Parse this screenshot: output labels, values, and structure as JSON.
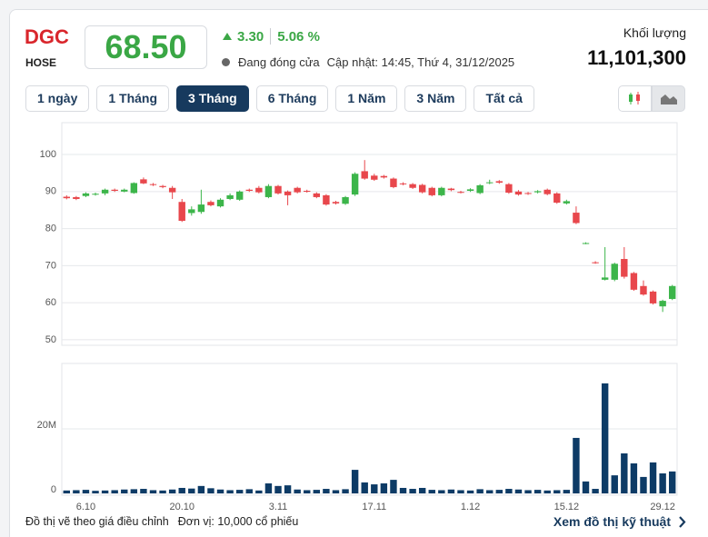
{
  "header": {
    "symbol": "DGC",
    "exchange": "HOSE",
    "price": "68.50",
    "change": "3.30",
    "change_percent": "5.06 %",
    "status": "Đang đóng cửa",
    "updated": "Cập nhật: 14:45, Thứ 4, 31/12/2025",
    "volume_label": "Khối lượng",
    "volume": "11,101,300"
  },
  "tabs": [
    "1 ngày",
    "1 Tháng",
    "3 Tháng",
    "6 Tháng",
    "1 Năm",
    "3 Năm",
    "Tất cả"
  ],
  "active_tab": 2,
  "chart_data": {
    "type": "candlestick",
    "up_color": "#3cb54a",
    "down_color": "#e8474c",
    "categories": [
      null,
      null,
      "6.10",
      null,
      null,
      null,
      null,
      null,
      null,
      null,
      null,
      null,
      "20.10",
      null,
      null,
      null,
      null,
      null,
      null,
      null,
      null,
      null,
      "3.11",
      null,
      null,
      null,
      null,
      null,
      null,
      null,
      null,
      null,
      "17.11",
      null,
      null,
      null,
      null,
      null,
      null,
      null,
      null,
      null,
      "1.12",
      null,
      null,
      null,
      null,
      null,
      null,
      null,
      null,
      null,
      "15.12",
      null,
      null,
      null,
      null,
      null,
      null,
      null,
      null,
      null,
      "29.12",
      null
    ],
    "open": [
      88.6,
      88.5,
      88.8,
      89.2,
      89.5,
      90.5,
      90,
      89.6,
      93.3,
      92,
      91.5,
      91,
      87.2,
      84.2,
      84.5,
      87.2,
      86,
      88,
      87.8,
      90.5,
      91,
      88.5,
      91.5,
      90,
      91,
      90.2,
      89.5,
      89,
      87.2,
      86.7,
      89.2,
      95.5,
      94.3,
      94.2,
      93.5,
      92.2,
      92,
      91.8,
      91,
      89,
      90.8,
      89.9,
      90.2,
      89.6,
      92.3,
      92.8,
      92,
      90,
      89.6,
      89.8,
      90.5,
      89.5,
      86.8,
      84.3,
      76,
      70.9,
      66.2,
      66.2,
      71.8,
      68,
      64.5,
      63,
      59,
      61
    ],
    "high": [
      89,
      88.8,
      89.8,
      89.7,
      90.8,
      90.8,
      90.8,
      92.5,
      93.8,
      92.3,
      91.8,
      91.5,
      88,
      86,
      90.5,
      87.6,
      88.2,
      89.5,
      90.3,
      90.8,
      91.5,
      92,
      91.8,
      90.3,
      91.3,
      90.5,
      89.8,
      89.3,
      87.5,
      88.8,
      95.2,
      98.5,
      94.8,
      94.5,
      93.8,
      92.5,
      92.3,
      92.1,
      91.3,
      91.3,
      91,
      90.2,
      90.9,
      92,
      93.2,
      93.1,
      92.3,
      90.4,
      89.9,
      90.4,
      90.8,
      89.8,
      87.8,
      86,
      76.3,
      71.2,
      75,
      70.8,
      75,
      68.3,
      66,
      63.3,
      60.8,
      64.8
    ],
    "low": [
      87.9,
      87.7,
      88.5,
      88.9,
      89,
      89.9,
      89.8,
      89.4,
      92,
      91.5,
      90.9,
      88,
      81.8,
      83.5,
      84,
      86,
      85.7,
      87.7,
      87.5,
      89.9,
      89.5,
      88.2,
      89.2,
      86.3,
      89.5,
      89.7,
      88.2,
      86.2,
      86.5,
      86.4,
      88.8,
      93.2,
      92.9,
      93.5,
      90.9,
      91.7,
      90.7,
      89.5,
      88.7,
      88.7,
      90.1,
      89.5,
      89.9,
      89.3,
      92,
      92.1,
      89.4,
      88.9,
      89.1,
      89.5,
      89,
      86.7,
      86.5,
      81.2,
      75.8,
      70.5,
      66,
      65.8,
      66.5,
      63.2,
      61.9,
      59.5,
      57.5,
      60.7
    ],
    "close": [
      88.2,
      88,
      89.5,
      89.4,
      90.5,
      90.2,
      90.5,
      92.3,
      92.2,
      91.8,
      91.2,
      89.8,
      82.1,
      85.2,
      86.5,
      86.3,
      87.8,
      89,
      90,
      90.2,
      89.8,
      91.5,
      89.5,
      89,
      89.8,
      90,
      88.5,
      86.5,
      86.8,
      88.5,
      94.8,
      93.5,
      93.2,
      93.8,
      91.2,
      92,
      91,
      89.8,
      89,
      91,
      90.4,
      89.8,
      90.6,
      91.7,
      92.5,
      92.4,
      89.7,
      89.2,
      89.4,
      90.1,
      89.3,
      87,
      87.4,
      81.5,
      76.1,
      70.8,
      66.8,
      70.5,
      67,
      63.5,
      62.2,
      59.8,
      60.5,
      64.5
    ],
    "ylim": [
      48.5,
      108.6
    ],
    "yticks": [
      50,
      60,
      70,
      80,
      90,
      100
    ],
    "grid": true,
    "volume": {
      "color": "#0d3b66",
      "ylim": [
        -560000,
        40280000
      ],
      "yticks": [
        0,
        {
          "value": 20000000,
          "label": "20M"
        }
      ],
      "values": [
        900000,
        1000000,
        1100000,
        800000,
        900000,
        1000000,
        1200000,
        1300000,
        1400000,
        1000000,
        900000,
        1200000,
        1700000,
        1500000,
        2300000,
        1600000,
        1200000,
        1000000,
        1100000,
        1300000,
        900000,
        3100000,
        2300000,
        2500000,
        1200000,
        1000000,
        1100000,
        1400000,
        1000000,
        1300000,
        7300000,
        3400000,
        2800000,
        3100000,
        4200000,
        1700000,
        1400000,
        1700000,
        1100000,
        1000000,
        1200000,
        1000000,
        900000,
        1300000,
        1000000,
        1100000,
        1400000,
        1200000,
        1000000,
        1100000,
        900000,
        1000000,
        1100000,
        17200000,
        3700000,
        1400000,
        34100000,
        5600000,
        12400000,
        9300000,
        5100000,
        9600000,
        6200000,
        6800000
      ]
    }
  },
  "footer": {
    "note": "Đồ thị vẽ theo giá điều chỉnh",
    "unit": "Đơn vị: 10,000 cổ phiếu",
    "link": "Xem đồ thị kỹ thuật"
  }
}
